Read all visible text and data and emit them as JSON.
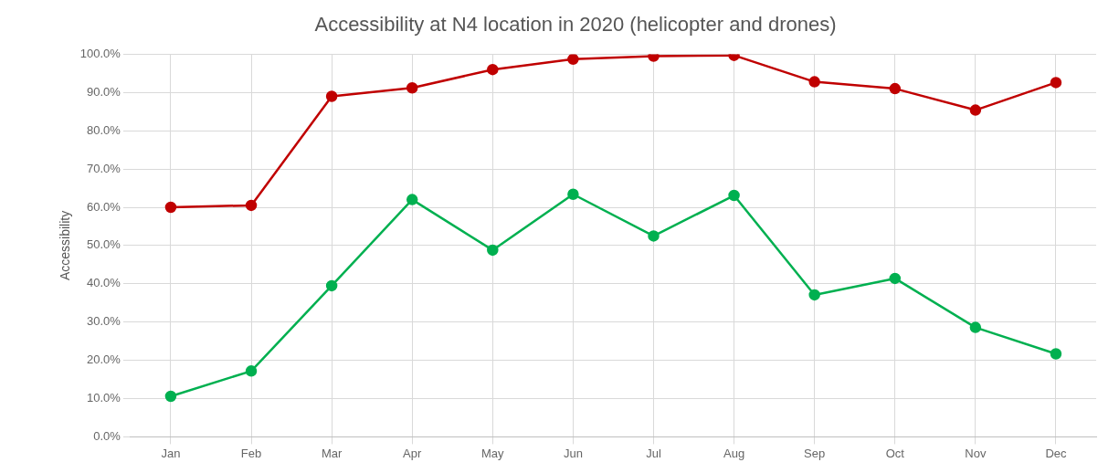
{
  "chart_data": {
    "type": "line",
    "title": "Accessibility at N4 location in 2020 (helicopter and drones)",
    "ylabel": "Accessibility",
    "categories": [
      "Jan",
      "Feb",
      "Mar",
      "Apr",
      "May",
      "Jun",
      "Jul",
      "Aug",
      "Sep",
      "Oct",
      "Nov",
      "Dec"
    ],
    "series": [
      {
        "color": "#c00000",
        "values": [
          60,
          60.5,
          89,
          91.2,
          96,
          98.7,
          99.5,
          99.7,
          92.8,
          91,
          85.4,
          92.6
        ]
      },
      {
        "color": "#00b050",
        "values": [
          10.6,
          17.2,
          39.5,
          62,
          48.8,
          63.4,
          52.5,
          63.1,
          37.1,
          41.4,
          28.6,
          21.7
        ]
      }
    ],
    "ylim": [
      0,
      100
    ],
    "yticks": [
      {
        "value": 0,
        "label": "0.0%"
      },
      {
        "value": 10,
        "label": "10.0%"
      },
      {
        "value": 20,
        "label": "20.0%"
      },
      {
        "value": 30,
        "label": "30.0%"
      },
      {
        "value": 40,
        "label": "40.0%"
      },
      {
        "value": 50,
        "label": "50.0%"
      },
      {
        "value": 60,
        "label": "60.0%"
      },
      {
        "value": 70,
        "label": "70.0%"
      },
      {
        "value": 80,
        "label": "80.0%"
      },
      {
        "value": 90,
        "label": "90.0%"
      },
      {
        "value": 100,
        "label": "100.0%"
      }
    ],
    "grid": true,
    "legend": false,
    "marker": "circle",
    "line_style": "solid"
  }
}
